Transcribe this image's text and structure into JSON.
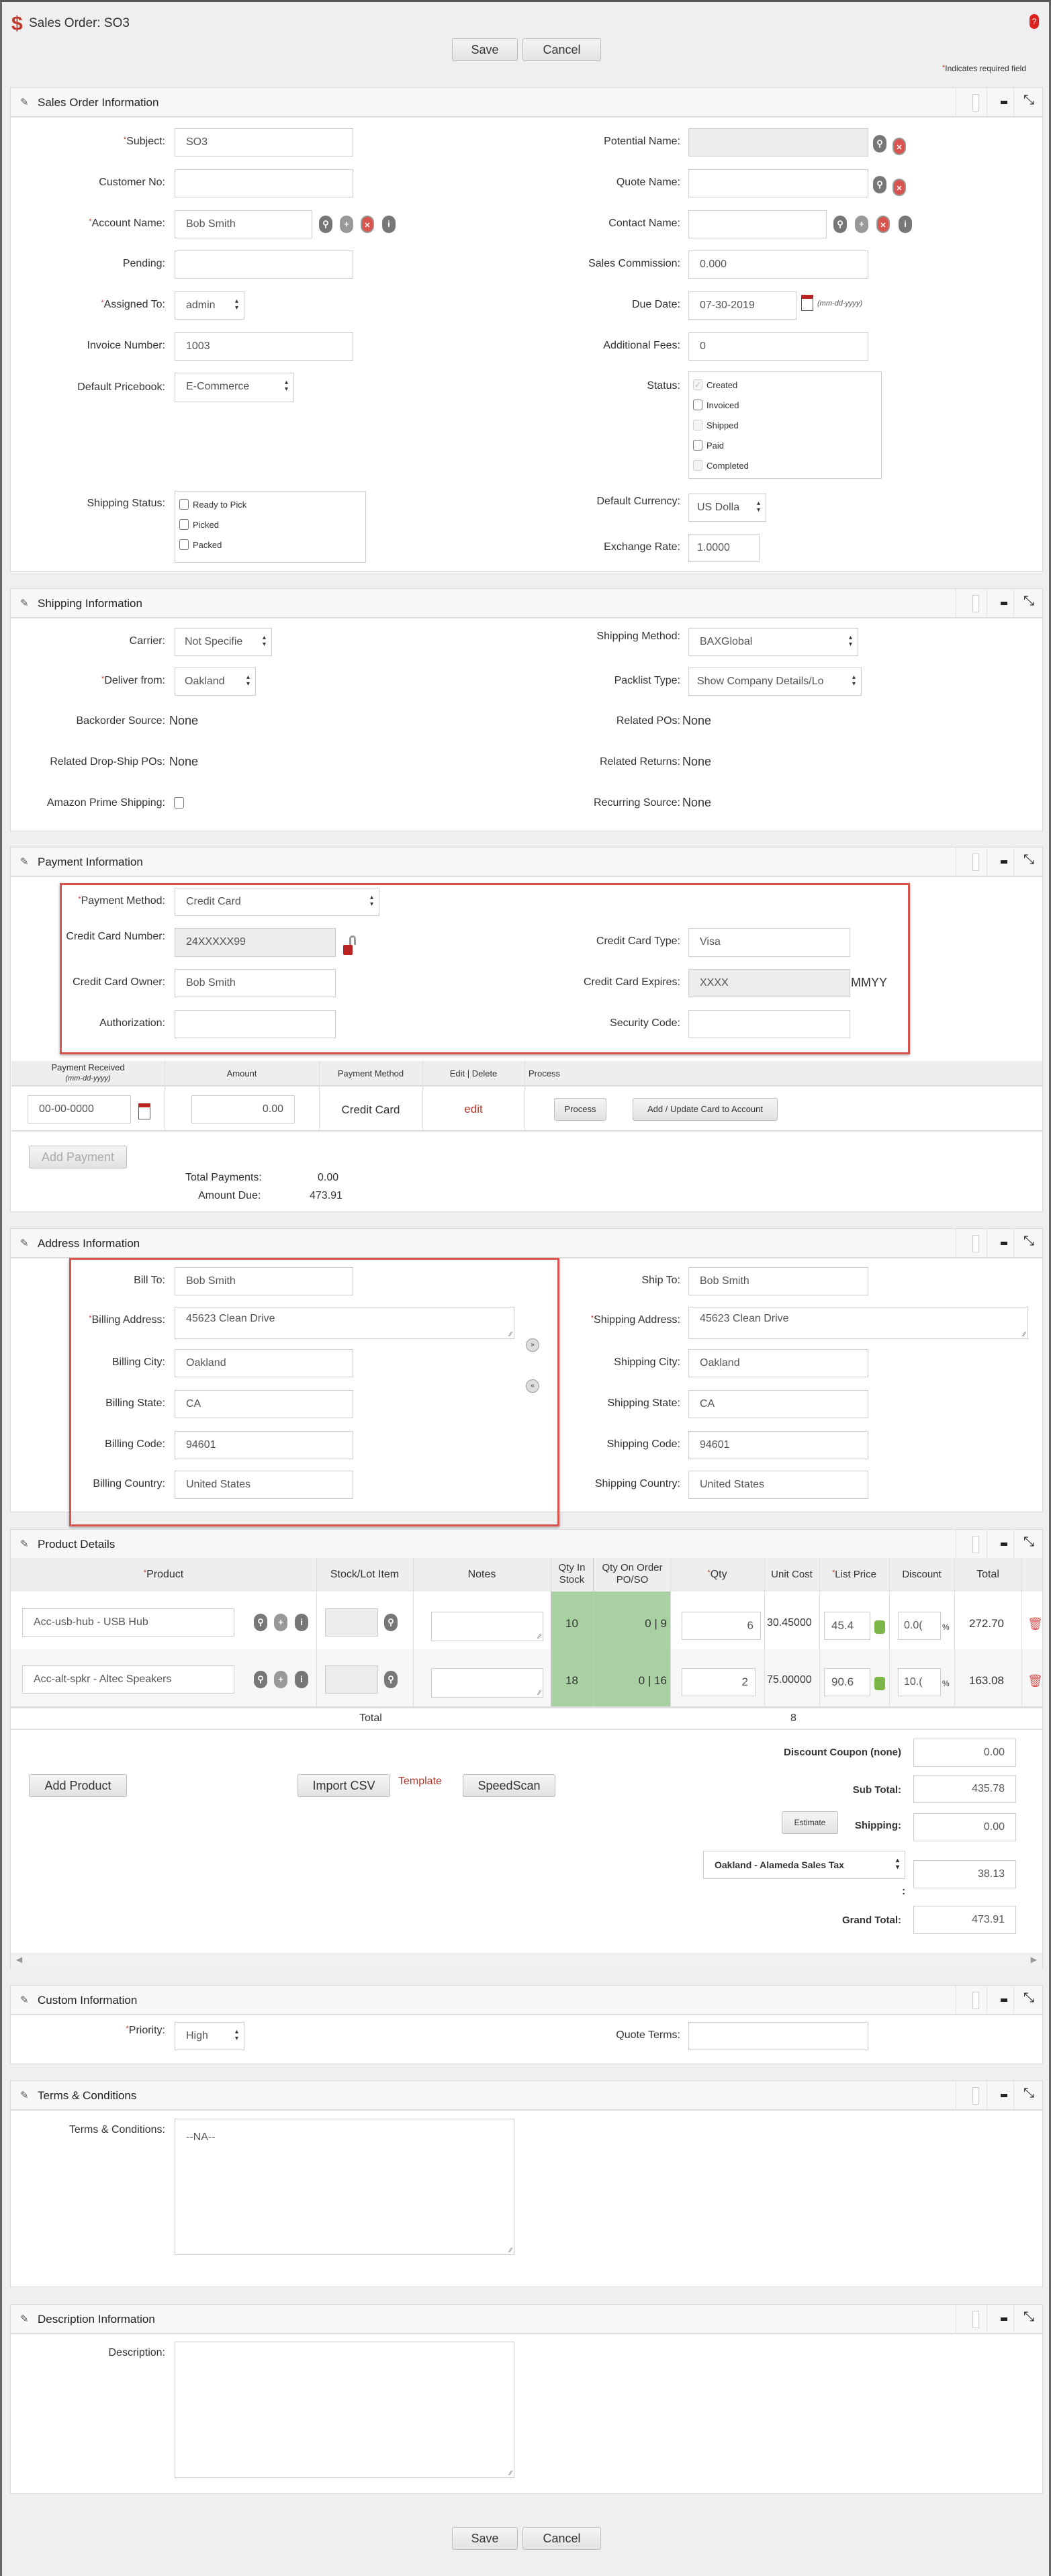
{
  "page": {
    "title": "Sales Order: SO3",
    "save": "Save",
    "cancel": "Cancel",
    "required_note": "Indicates required field",
    "accent": "#c0392b"
  },
  "sections": {
    "sales_order": "Sales Order Information",
    "shipping": "Shipping Information",
    "payment": "Payment Information",
    "address": "Address Information",
    "product": "Product Details",
    "custom": "Custom Information",
    "terms": "Terms & Conditions",
    "description": "Description Information"
  },
  "soi": {
    "subject_label": "Subject:",
    "subject": "SO3",
    "customer_no_label": "Customer No:",
    "customer_no": "",
    "account_label": "Account Name:",
    "account": "Bob Smith",
    "pending_label": "Pending:",
    "pending": "",
    "assigned_label": "Assigned To:",
    "assigned": "admin",
    "invoice_label": "Invoice Number:",
    "invoice": "1003",
    "pricebook_label": "Default Pricebook:",
    "pricebook": "E-Commerce",
    "shipping_status_label": "Shipping Status:",
    "shipping_status": [
      {
        "label": "Ready to Pick",
        "checked": false
      },
      {
        "label": "Picked",
        "checked": false
      },
      {
        "label": "Packed",
        "checked": false
      }
    ],
    "potential_label": "Potential Name:",
    "potential": "",
    "quote_label": "Quote Name:",
    "quote": "",
    "contact_label": "Contact Name:",
    "contact": "",
    "commission_label": "Sales Commission:",
    "commission": "0.000",
    "due_label": "Due Date:",
    "due": "07-30-2019",
    "due_format": "(mm-dd-yyyy)",
    "fees_label": "Additional Fees:",
    "fees": "0",
    "status_label": "Status:",
    "status": [
      {
        "label": "Created",
        "checked": true,
        "disabled": true
      },
      {
        "label": "Invoiced",
        "checked": false,
        "disabled": false
      },
      {
        "label": "Shipped",
        "checked": false,
        "disabled": true
      },
      {
        "label": "Paid",
        "checked": false,
        "disabled": false
      },
      {
        "label": "Completed",
        "checked": false,
        "disabled": true
      }
    ],
    "currency_label": "Default Currency:",
    "currency": "US Dolla",
    "exchange_label": "Exchange Rate:",
    "exchange": "1.0000"
  },
  "ship": {
    "carrier_label": "Carrier:",
    "carrier": "Not Specifie",
    "deliver_label": "Deliver from:",
    "deliver": "Oakland",
    "backorder_label": "Backorder Source:",
    "backorder": "None",
    "dropship_label": "Related Drop-Ship POs:",
    "dropship": "None",
    "amazon_label": "Amazon Prime Shipping:",
    "method_label": "Shipping Method:",
    "method": "BAXGlobal",
    "packlist_label": "Packlist Type:",
    "packlist": "Show Company Details/Lo",
    "pos_label": "Related POs:",
    "pos": "None",
    "returns_label": "Related Returns:",
    "returns": "None",
    "recurring_label": "Recurring Source:",
    "recurring": "None"
  },
  "pay": {
    "method_label": "Payment Method:",
    "method": "Credit Card",
    "ccnum_label": "Credit Card Number:",
    "ccnum": "24XXXXX99",
    "owner_label": "Credit Card Owner:",
    "owner": "Bob Smith",
    "auth_label": "Authorization:",
    "auth": "",
    "cctype_label": "Credit Card Type:",
    "cctype": "Visa",
    "expires_label": "Credit Card Expires:",
    "expires": "XXXX",
    "expires_suffix": "MMYY",
    "security_label": "Security Code:",
    "security": "",
    "table": {
      "h_received": "Payment Received",
      "h_received_fmt": "(mm-dd-yyyy)",
      "h_amount": "Amount",
      "h_method": "Payment Method",
      "h_edit": "Edit | Delete",
      "h_process": "Process",
      "date": "00-00-0000",
      "amount": "0.00",
      "method": "Credit Card",
      "edit": "edit",
      "process_btn": "Process",
      "card_btn": "Add / Update Card to Account"
    },
    "add_payment": "Add Payment",
    "total_label": "Total Payments:",
    "total": "0.00",
    "due_label": "Amount Due:",
    "due": "473.91"
  },
  "addr": {
    "bill_to_label": "Bill To:",
    "bill_to": "Bob Smith",
    "bill_addr_label": "Billing Address:",
    "bill_addr": "45623 Clean Drive",
    "bill_city_label": "Billing City:",
    "bill_city": "Oakland",
    "bill_state_label": "Billing State:",
    "bill_state": "CA",
    "bill_code_label": "Billing Code:",
    "bill_code": "94601",
    "bill_country_label": "Billing Country:",
    "bill_country": "United States",
    "ship_to_label": "Ship To:",
    "ship_to": "Bob Smith",
    "ship_addr_label": "Shipping Address:",
    "ship_addr": "45623 Clean Drive",
    "ship_city_label": "Shipping City:",
    "ship_city": "Oakland",
    "ship_state_label": "Shipping State:",
    "ship_state": "CA",
    "ship_code_label": "Shipping Code:",
    "ship_code": "94601",
    "ship_country_label": "Shipping Country:",
    "ship_country": "United States"
  },
  "products": {
    "headers": {
      "product": "Product",
      "stock": "Stock/Lot Item",
      "notes": "Notes",
      "qty_in_stock": "Qty In Stock",
      "qty_on_order": "Qty On Order PO/SO",
      "qty": "Qty",
      "unit_cost": "Unit Cost",
      "list_price": "List Price",
      "discount": "Discount",
      "total": "Total"
    },
    "rows": [
      {
        "product": "Acc-usb-hub - USB Hub",
        "in_stock": "10",
        "on_order": "0 | 9",
        "qty": "6",
        "unit_cost": "30.45000",
        "list_price": "45.4",
        "discount": "0.0(",
        "total": "272.70"
      },
      {
        "product": "Acc-alt-spkr - Altec Speakers",
        "in_stock": "18",
        "on_order": "0 | 16",
        "qty": "2",
        "unit_cost": "75.00000",
        "list_price": "90.6",
        "discount": "10.(",
        "total": "163.08"
      }
    ],
    "total_label": "Total",
    "total_qty": "8",
    "percent": "%",
    "green": "#a9d0a3",
    "add_product": "Add Product",
    "import_csv": "Import CSV",
    "template": "Template",
    "speedscan": "SpeedScan",
    "coupon_label": "Discount Coupon (none)",
    "coupon": "0.00",
    "subtotal_label": "Sub Total:",
    "subtotal": "435.78",
    "estimate": "Estimate",
    "shipping_label": "Shipping:",
    "shipping": "0.00",
    "tax_select": "Oakland - Alameda Sales Tax",
    "tax_colon": ":",
    "tax": "38.13",
    "grand_label": "Grand Total:",
    "grand": "473.91"
  },
  "custom": {
    "priority_label": "Priority:",
    "priority": "High",
    "quote_terms_label": "Quote Terms:",
    "quote_terms": ""
  },
  "terms": {
    "label": "Terms & Conditions:",
    "value": "--NA--"
  },
  "desc": {
    "label": "Description:",
    "value": ""
  }
}
